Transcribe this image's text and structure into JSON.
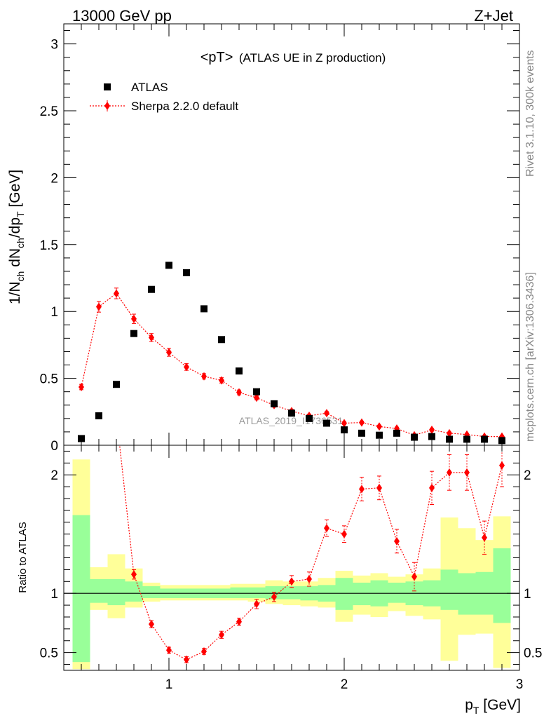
{
  "header": {
    "left": "13000 GeV pp",
    "right": "Z+Jet"
  },
  "side_text": {
    "top": "Rivet 3.1.10,  300k events",
    "bottom": "mcplots.cern.ch [arXiv:1306.3436]"
  },
  "watermark": "ATLAS_2019_I1736531",
  "colors": {
    "data": "#000000",
    "mc": "#ff0000",
    "band_inner": "#99ff99",
    "band_outer": "#ffff99"
  },
  "chart_data": [
    {
      "type": "scatter",
      "title": "<pT> (ATLAS UE in Z production)",
      "title_main": "<pT>",
      "title_sub": "(ATLAS UE in Z production)",
      "ylabel": "1/N_ch dN_ch/dp_T [GeV]",
      "ylabel_parts": {
        "a": "1/N",
        "a_sub": "ch",
        "b": " dN",
        "b_sub": "ch",
        "c": "/dp",
        "c_sub": "T",
        "d": " [GeV]"
      },
      "xlim": [
        0.4,
        3.0
      ],
      "ylim": [
        0,
        3.15
      ],
      "yticks": [
        {
          "v": 0,
          "label": "0"
        },
        {
          "v": 0.5,
          "label": "0.5"
        },
        {
          "v": 1,
          "label": "1"
        },
        {
          "v": 1.5,
          "label": "1.5"
        },
        {
          "v": 2,
          "label": "2"
        },
        {
          "v": 2.5,
          "label": "2.5"
        },
        {
          "v": 3,
          "label": "3"
        }
      ],
      "legend_position": "top-left",
      "series": [
        {
          "name": "ATLAS",
          "marker": "square",
          "x": [
            0.5,
            0.6,
            0.7,
            0.8,
            0.9,
            1.0,
            1.1,
            1.2,
            1.3,
            1.4,
            1.5,
            1.6,
            1.7,
            1.8,
            1.9,
            2.0,
            2.1,
            2.2,
            2.3,
            2.4,
            2.5,
            2.6,
            2.7,
            2.8,
            2.9
          ],
          "y": [
            0.05,
            0.22,
            0.455,
            0.835,
            1.165,
            1.345,
            1.29,
            1.02,
            0.79,
            0.555,
            0.4,
            0.31,
            0.24,
            0.2,
            0.165,
            0.115,
            0.09,
            0.075,
            0.09,
            0.06,
            0.065,
            0.045,
            0.045,
            0.045,
            0.035
          ]
        },
        {
          "name": "Sherpa 2.2.0 default",
          "marker": "diamond",
          "x": [
            0.5,
            0.6,
            0.7,
            0.8,
            0.9,
            1.0,
            1.1,
            1.2,
            1.3,
            1.4,
            1.5,
            1.6,
            1.7,
            1.8,
            1.9,
            2.0,
            2.1,
            2.2,
            2.3,
            2.4,
            2.5,
            2.6,
            2.7,
            2.8,
            2.9
          ],
          "y": [
            0.435,
            1.035,
            1.135,
            0.945,
            0.805,
            0.695,
            0.585,
            0.515,
            0.485,
            0.395,
            0.355,
            0.3,
            0.255,
            0.22,
            0.24,
            0.165,
            0.17,
            0.14,
            0.125,
            0.075,
            0.115,
            0.09,
            0.08,
            0.065,
            0.065
          ],
          "yerr": [
            0.02,
            0.04,
            0.04,
            0.035,
            0.03,
            0.03,
            0.025,
            0.02,
            0.02,
            0.018,
            0.015,
            0.015,
            0.013,
            0.012,
            0.012,
            0.01,
            0.01,
            0.01,
            0.01,
            0.008,
            0.01,
            0.008,
            0.008,
            0.007,
            0.007
          ]
        }
      ]
    },
    {
      "type": "scatter",
      "ylabel": "Ratio to ATLAS",
      "xlabel_parts": {
        "a": "p",
        "a_sub": "T",
        "b": " [GeV]"
      },
      "xlabel": "p_T [GeV]",
      "xlim": [
        0.4,
        3.0
      ],
      "ylim": [
        0.35,
        2.25
      ],
      "xticks": [
        {
          "v": 1,
          "label": "1"
        },
        {
          "v": 2,
          "label": "2"
        },
        {
          "v": 3,
          "label": "3"
        }
      ],
      "yticks": [
        {
          "v": 0.5,
          "label": "0.5"
        },
        {
          "v": 1,
          "label": "1"
        },
        {
          "v": 2,
          "label": "2"
        }
      ],
      "reference_line": 1,
      "bands": {
        "edges": [
          0.45,
          0.55,
          0.65,
          0.75,
          0.85,
          0.95,
          1.05,
          1.15,
          1.25,
          1.35,
          1.45,
          1.55,
          1.65,
          1.75,
          1.85,
          1.95,
          2.05,
          2.15,
          2.25,
          2.35,
          2.45,
          2.55,
          2.65,
          2.75,
          2.85,
          2.95
        ],
        "outer_lo": [
          0.36,
          0.86,
          0.79,
          0.88,
          0.93,
          0.94,
          0.94,
          0.94,
          0.94,
          0.94,
          0.93,
          0.91,
          0.9,
          0.89,
          0.88,
          0.76,
          0.82,
          0.8,
          0.85,
          0.81,
          0.78,
          0.43,
          0.65,
          0.66,
          0.37
        ],
        "outer_hi": [
          2.13,
          1.22,
          1.33,
          1.21,
          1.09,
          1.07,
          1.07,
          1.07,
          1.07,
          1.08,
          1.08,
          1.11,
          1.1,
          1.1,
          1.13,
          1.19,
          1.15,
          1.17,
          1.14,
          1.16,
          1.21,
          1.64,
          1.55,
          1.45,
          1.65
        ],
        "inner_lo": [
          0.42,
          0.92,
          0.9,
          0.93,
          0.96,
          0.96,
          0.96,
          0.96,
          0.96,
          0.96,
          0.96,
          0.95,
          0.95,
          0.94,
          0.93,
          0.86,
          0.9,
          0.89,
          0.92,
          0.9,
          0.89,
          0.86,
          0.82,
          0.82,
          0.75
        ],
        "inner_hi": [
          1.66,
          1.12,
          1.12,
          1.1,
          1.06,
          1.04,
          1.04,
          1.04,
          1.04,
          1.05,
          1.05,
          1.06,
          1.06,
          1.06,
          1.07,
          1.13,
          1.09,
          1.11,
          1.09,
          1.1,
          1.11,
          1.2,
          1.17,
          1.18,
          1.38
        ]
      },
      "series": [
        {
          "name": "Sherpa 2.2.0 default",
          "marker": "diamond",
          "x": [
            0.8,
            0.9,
            1.0,
            1.1,
            1.2,
            1.3,
            1.4,
            1.5,
            1.6,
            1.7,
            1.8,
            1.9,
            2.0,
            2.1,
            2.2,
            2.3,
            2.4,
            2.5,
            2.6,
            2.7,
            2.8,
            2.9
          ],
          "y": [
            1.16,
            0.74,
            0.52,
            0.44,
            0.51,
            0.65,
            0.76,
            0.91,
            0.97,
            1.1,
            1.12,
            1.55,
            1.5,
            1.88,
            1.89,
            1.44,
            1.14,
            1.89,
            2.02,
            2.02,
            1.47,
            2.08
          ],
          "yerr": [
            0.04,
            0.03,
            0.025,
            0.025,
            0.025,
            0.03,
            0.03,
            0.04,
            0.04,
            0.05,
            0.06,
            0.07,
            0.07,
            0.1,
            0.1,
            0.1,
            0.12,
            0.14,
            0.15,
            0.15,
            0.14,
            0.18
          ],
          "offscale_start": {
            "x": 0.7,
            "y": 2.5
          }
        }
      ]
    }
  ]
}
